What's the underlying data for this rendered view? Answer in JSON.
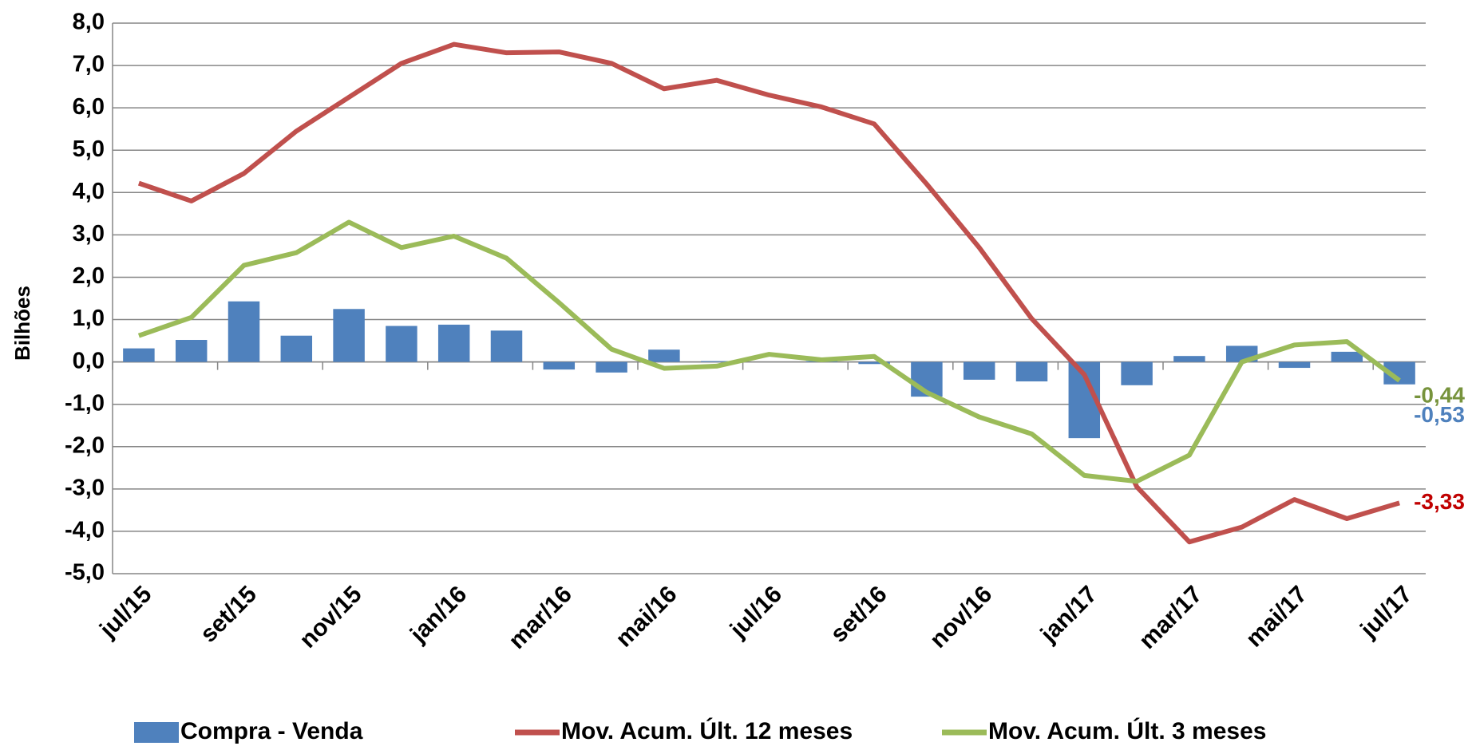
{
  "chart_data": {
    "type": "bar-line",
    "y_label": "Bilhões",
    "categories": [
      "jul/15",
      null,
      "set/15",
      null,
      "nov/15",
      null,
      "jan/16",
      null,
      "mar/16",
      null,
      "mai/16",
      null,
      "jul/16",
      null,
      "set/16",
      null,
      "nov/16",
      null,
      "jan/17",
      null,
      "mar/17",
      null,
      "mai/17",
      null,
      "jul/17"
    ],
    "series": [
      {
        "name": "Compra - Venda",
        "type": "bar",
        "color": "#4f81bd",
        "label_color": "#4f81bd",
        "values": [
          0.32,
          0.52,
          1.43,
          0.62,
          1.25,
          0.85,
          0.88,
          0.74,
          -0.18,
          -0.25,
          0.29,
          0.02,
          0.0,
          0.02,
          -0.05,
          -0.82,
          -0.42,
          -0.46,
          -1.8,
          -0.55,
          0.14,
          0.38,
          -0.14,
          0.24,
          -0.53
        ],
        "value_labels": [
          null,
          null,
          null,
          null,
          null,
          null,
          null,
          null,
          null,
          null,
          null,
          null,
          null,
          null,
          null,
          null,
          null,
          null,
          null,
          null,
          null,
          null,
          null,
          null,
          "-0,53"
        ]
      },
      {
        "name": "Mov. Acum. Últ. 12 meses",
        "type": "line",
        "color": "#c0504d",
        "label_color": "#c00000",
        "values": [
          4.22,
          3.8,
          4.45,
          5.45,
          6.25,
          7.05,
          7.5,
          7.3,
          7.32,
          7.05,
          6.45,
          6.65,
          6.3,
          6.02,
          5.62,
          4.2,
          2.7,
          1.02,
          -0.3,
          -2.95,
          -4.25,
          -3.9,
          -3.25,
          -3.7,
          -3.33
        ],
        "value_labels": [
          null,
          null,
          null,
          null,
          null,
          null,
          null,
          null,
          null,
          null,
          null,
          null,
          null,
          null,
          null,
          null,
          null,
          null,
          null,
          null,
          null,
          null,
          null,
          null,
          "-3,33"
        ]
      },
      {
        "name": "Mov. Acum. Últ. 3 meses",
        "type": "line",
        "color": "#9bbb59",
        "label_color": "#77933c",
        "values": [
          0.62,
          1.05,
          2.28,
          2.58,
          3.3,
          2.7,
          2.97,
          2.45,
          1.4,
          0.3,
          -0.15,
          -0.1,
          0.18,
          0.05,
          0.13,
          -0.72,
          -1.3,
          -1.7,
          -2.68,
          -2.82,
          -2.2,
          0.0,
          0.4,
          0.48,
          -0.44
        ],
        "value_labels": [
          null,
          null,
          null,
          null,
          null,
          null,
          null,
          null,
          null,
          null,
          null,
          null,
          null,
          null,
          null,
          null,
          null,
          null,
          null,
          null,
          null,
          null,
          null,
          null,
          "-0,44"
        ]
      }
    ],
    "ylim": [
      -5,
      8
    ],
    "yticks": [
      {
        "value": -5,
        "label": "-5,0"
      },
      {
        "value": -4,
        "label": "-4,0"
      },
      {
        "value": -3,
        "label": "-3,0"
      },
      {
        "value": -2,
        "label": "-2,0"
      },
      {
        "value": -1,
        "label": "-1,0"
      },
      {
        "value": 0,
        "label": "0,0"
      },
      {
        "value": 1,
        "label": "1,0"
      },
      {
        "value": 2,
        "label": "2,0"
      },
      {
        "value": 3,
        "label": "3,0"
      },
      {
        "value": 4,
        "label": "4,0"
      },
      {
        "value": 5,
        "label": "5,0"
      },
      {
        "value": 6,
        "label": "6,0"
      },
      {
        "value": 7,
        "label": "7,0"
      },
      {
        "value": 8,
        "label": "8,0"
      }
    ],
    "grid": true,
    "legend": "bottom"
  }
}
